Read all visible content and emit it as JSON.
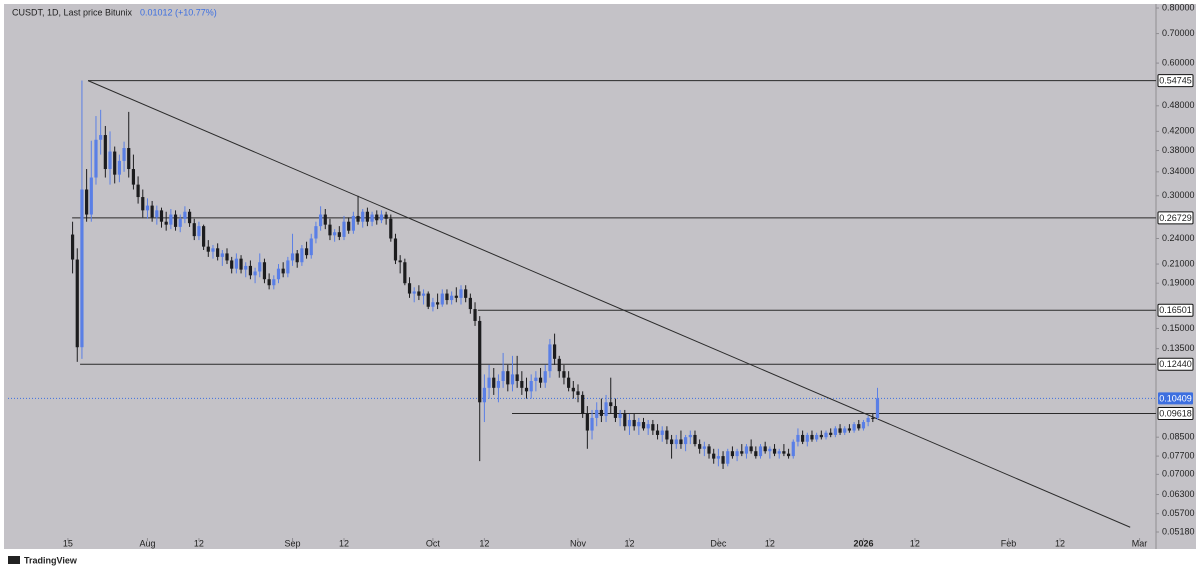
{
  "chart_data": {
    "type": "candlestick",
    "title": "CUSDT, 1D, Last price Bitunix",
    "change": "0.01012 (+10.77%)",
    "footer": "TradingView",
    "log_scale": true,
    "up_color": "#5a7fe6",
    "down_color": "#1c1c1e",
    "ylim": [
      0.0502,
      0.8085
    ],
    "yticks": [
      {
        "value": 0.8,
        "label": "0.80000"
      },
      {
        "value": 0.7,
        "label": "0.70000"
      },
      {
        "value": 0.6,
        "label": "0.60000"
      },
      {
        "value": 0.48,
        "label": "0.48000"
      },
      {
        "value": 0.42,
        "label": "0.42000"
      },
      {
        "value": 0.38,
        "label": "0.38000"
      },
      {
        "value": 0.34,
        "label": "0.34000"
      },
      {
        "value": 0.3,
        "label": "0.30000"
      },
      {
        "value": 0.24,
        "label": "0.24000"
      },
      {
        "value": 0.21,
        "label": "0.21000"
      },
      {
        "value": 0.19,
        "label": "0.19000"
      },
      {
        "value": 0.15,
        "label": "0.15000"
      },
      {
        "value": 0.135,
        "label": "0.13500"
      },
      {
        "value": 0.085,
        "label": "0.08500"
      },
      {
        "value": 0.077,
        "label": "0.07700"
      },
      {
        "value": 0.07,
        "label": "0.07000"
      },
      {
        "value": 0.063,
        "label": "0.06300"
      },
      {
        "value": 0.057,
        "label": "0.05700"
      },
      {
        "value": 0.0518,
        "label": "0.05180"
      }
    ],
    "xlim": [
      -12.8,
      232.3
    ],
    "xticks": [
      {
        "value": 0,
        "label": "15"
      },
      {
        "value": 17,
        "label": "Aug"
      },
      {
        "value": 28,
        "label": "12"
      },
      {
        "value": 48,
        "label": "Sep"
      },
      {
        "value": 59,
        "label": "12"
      },
      {
        "value": 78,
        "label": "Oct"
      },
      {
        "value": 89,
        "label": "12"
      },
      {
        "value": 109,
        "label": "Nov"
      },
      {
        "value": 120,
        "label": "12"
      },
      {
        "value": 139,
        "label": "Dec"
      },
      {
        "value": 150,
        "label": "12"
      },
      {
        "value": 170,
        "label": "2026"
      },
      {
        "value": 181,
        "label": "12"
      },
      {
        "value": 201,
        "label": "Feb"
      },
      {
        "value": 212,
        "label": "12"
      },
      {
        "value": 229,
        "label": "Mar"
      }
    ],
    "x": [
      1,
      2,
      3,
      4,
      5,
      6,
      7,
      8,
      9,
      10,
      11,
      12,
      13,
      14,
      15,
      16,
      17,
      18,
      19,
      20,
      21,
      22,
      23,
      24,
      25,
      26,
      27,
      28,
      29,
      30,
      31,
      32,
      33,
      34,
      35,
      36,
      37,
      38,
      39,
      40,
      41,
      42,
      43,
      44,
      45,
      46,
      47,
      48,
      49,
      50,
      51,
      52,
      53,
      54,
      55,
      56,
      57,
      58,
      59,
      60,
      61,
      62,
      63,
      64,
      65,
      66,
      67,
      68,
      69,
      70,
      71,
      72,
      73,
      74,
      75,
      76,
      77,
      78,
      79,
      80,
      81,
      82,
      83,
      84,
      85,
      86,
      87,
      88,
      89,
      90,
      91,
      92,
      93,
      94,
      95,
      96,
      97,
      98,
      99,
      100,
      101,
      102,
      103,
      104,
      105,
      106,
      107,
      108,
      109,
      110,
      111,
      112,
      113,
      114,
      115,
      116,
      117,
      118,
      119,
      120,
      121,
      122,
      123,
      124,
      125,
      126,
      127,
      128,
      129,
      130,
      131,
      132,
      133,
      134,
      135,
      136,
      137,
      138,
      139,
      140,
      141,
      142,
      143,
      144,
      145,
      146,
      147,
      148,
      149,
      150,
      151,
      152,
      153,
      154,
      155,
      156,
      157,
      158,
      159,
      160,
      161,
      162,
      163,
      164,
      165,
      166,
      167,
      168,
      169,
      170,
      171,
      172,
      173
    ],
    "ohlc": [
      [
        0.245,
        0.262,
        0.2,
        0.215
      ],
      [
        0.215,
        0.228,
        0.126,
        0.136
      ],
      [
        0.136,
        0.548,
        0.128,
        0.31
      ],
      [
        0.31,
        0.345,
        0.262,
        0.272
      ],
      [
        0.272,
        0.4,
        0.262,
        0.33
      ],
      [
        0.33,
        0.455,
        0.318,
        0.402
      ],
      [
        0.402,
        0.47,
        0.372,
        0.412
      ],
      [
        0.412,
        0.432,
        0.33,
        0.345
      ],
      [
        0.345,
        0.42,
        0.318,
        0.378
      ],
      [
        0.378,
        0.388,
        0.32,
        0.335
      ],
      [
        0.335,
        0.372,
        0.322,
        0.36
      ],
      [
        0.36,
        0.398,
        0.34,
        0.385
      ],
      [
        0.385,
        0.465,
        0.33,
        0.345
      ],
      [
        0.345,
        0.372,
        0.31,
        0.318
      ],
      [
        0.318,
        0.332,
        0.288,
        0.298
      ],
      [
        0.298,
        0.31,
        0.268,
        0.278
      ],
      [
        0.278,
        0.296,
        0.266,
        0.285
      ],
      [
        0.285,
        0.292,
        0.262,
        0.268
      ],
      [
        0.268,
        0.285,
        0.258,
        0.278
      ],
      [
        0.278,
        0.282,
        0.254,
        0.262
      ],
      [
        0.262,
        0.276,
        0.25,
        0.258
      ],
      [
        0.258,
        0.28,
        0.252,
        0.272
      ],
      [
        0.272,
        0.278,
        0.25,
        0.255
      ],
      [
        0.255,
        0.272,
        0.248,
        0.266
      ],
      [
        0.266,
        0.284,
        0.26,
        0.276
      ],
      [
        0.276,
        0.28,
        0.255,
        0.26
      ],
      [
        0.26,
        0.266,
        0.238,
        0.243
      ],
      [
        0.243,
        0.262,
        0.238,
        0.256
      ],
      [
        0.256,
        0.258,
        0.226,
        0.23
      ],
      [
        0.23,
        0.238,
        0.218,
        0.224
      ],
      [
        0.224,
        0.232,
        0.216,
        0.228
      ],
      [
        0.228,
        0.234,
        0.214,
        0.218
      ],
      [
        0.218,
        0.226,
        0.208,
        0.222
      ],
      [
        0.222,
        0.228,
        0.21,
        0.214
      ],
      [
        0.214,
        0.218,
        0.2,
        0.205
      ],
      [
        0.205,
        0.222,
        0.2,
        0.216
      ],
      [
        0.216,
        0.22,
        0.2,
        0.204
      ],
      [
        0.204,
        0.212,
        0.196,
        0.208
      ],
      [
        0.208,
        0.214,
        0.194,
        0.198
      ],
      [
        0.198,
        0.206,
        0.19,
        0.202
      ],
      [
        0.202,
        0.222,
        0.196,
        0.212
      ],
      [
        0.212,
        0.216,
        0.19,
        0.194
      ],
      [
        0.194,
        0.2,
        0.184,
        0.188
      ],
      [
        0.188,
        0.198,
        0.184,
        0.194
      ],
      [
        0.194,
        0.21,
        0.19,
        0.205
      ],
      [
        0.205,
        0.212,
        0.196,
        0.2
      ],
      [
        0.2,
        0.218,
        0.196,
        0.214
      ],
      [
        0.214,
        0.246,
        0.208,
        0.222
      ],
      [
        0.222,
        0.226,
        0.206,
        0.212
      ],
      [
        0.212,
        0.232,
        0.208,
        0.228
      ],
      [
        0.228,
        0.236,
        0.216,
        0.22
      ],
      [
        0.22,
        0.246,
        0.216,
        0.24
      ],
      [
        0.24,
        0.262,
        0.234,
        0.256
      ],
      [
        0.256,
        0.284,
        0.25,
        0.272
      ],
      [
        0.272,
        0.28,
        0.252,
        0.258
      ],
      [
        0.258,
        0.266,
        0.238,
        0.244
      ],
      [
        0.244,
        0.252,
        0.236,
        0.248
      ],
      [
        0.248,
        0.256,
        0.238,
        0.242
      ],
      [
        0.242,
        0.27,
        0.238,
        0.262
      ],
      [
        0.262,
        0.268,
        0.246,
        0.25
      ],
      [
        0.25,
        0.276,
        0.246,
        0.27
      ],
      [
        0.27,
        0.3,
        0.258,
        0.262
      ],
      [
        0.262,
        0.28,
        0.254,
        0.276
      ],
      [
        0.276,
        0.282,
        0.256,
        0.262
      ],
      [
        0.262,
        0.276,
        0.256,
        0.272
      ],
      [
        0.272,
        0.278,
        0.258,
        0.264
      ],
      [
        0.264,
        0.278,
        0.26,
        0.272
      ],
      [
        0.272,
        0.276,
        0.258,
        0.266
      ],
      [
        0.266,
        0.272,
        0.236,
        0.24
      ],
      [
        0.24,
        0.246,
        0.21,
        0.214
      ],
      [
        0.214,
        0.22,
        0.2,
        0.212
      ],
      [
        0.212,
        0.216,
        0.188,
        0.19
      ],
      [
        0.19,
        0.196,
        0.176,
        0.18
      ],
      [
        0.18,
        0.186,
        0.172,
        0.182
      ],
      [
        0.182,
        0.188,
        0.174,
        0.178
      ],
      [
        0.178,
        0.184,
        0.17,
        0.18
      ],
      [
        0.18,
        0.182,
        0.166,
        0.168
      ],
      [
        0.168,
        0.176,
        0.164,
        0.172
      ],
      [
        0.172,
        0.18,
        0.166,
        0.17
      ],
      [
        0.17,
        0.184,
        0.168,
        0.18
      ],
      [
        0.18,
        0.184,
        0.17,
        0.174
      ],
      [
        0.174,
        0.182,
        0.17,
        0.178
      ],
      [
        0.178,
        0.186,
        0.172,
        0.176
      ],
      [
        0.176,
        0.188,
        0.17,
        0.184
      ],
      [
        0.184,
        0.188,
        0.172,
        0.176
      ],
      [
        0.176,
        0.18,
        0.162,
        0.166
      ],
      [
        0.166,
        0.172,
        0.152,
        0.156
      ],
      [
        0.156,
        0.16,
        0.075,
        0.102
      ],
      [
        0.102,
        0.118,
        0.092,
        0.11
      ],
      [
        0.11,
        0.124,
        0.104,
        0.116
      ],
      [
        0.116,
        0.122,
        0.106,
        0.11
      ],
      [
        0.11,
        0.118,
        0.102,
        0.114
      ],
      [
        0.114,
        0.132,
        0.11,
        0.12
      ],
      [
        0.12,
        0.124,
        0.108,
        0.112
      ],
      [
        0.112,
        0.13,
        0.108,
        0.118
      ],
      [
        0.118,
        0.13,
        0.11,
        0.114
      ],
      [
        0.114,
        0.12,
        0.106,
        0.11
      ],
      [
        0.11,
        0.116,
        0.104,
        0.108
      ],
      [
        0.108,
        0.118,
        0.104,
        0.114
      ],
      [
        0.114,
        0.12,
        0.108,
        0.116
      ],
      [
        0.116,
        0.122,
        0.11,
        0.113
      ],
      [
        0.113,
        0.124,
        0.11,
        0.12
      ],
      [
        0.12,
        0.142,
        0.116,
        0.138
      ],
      [
        0.138,
        0.146,
        0.124,
        0.128
      ],
      [
        0.128,
        0.13,
        0.116,
        0.12
      ],
      [
        0.12,
        0.124,
        0.112,
        0.116
      ],
      [
        0.116,
        0.12,
        0.108,
        0.11
      ],
      [
        0.11,
        0.114,
        0.104,
        0.108
      ],
      [
        0.108,
        0.112,
        0.102,
        0.106
      ],
      [
        0.106,
        0.108,
        0.094,
        0.096
      ],
      [
        0.096,
        0.1,
        0.08,
        0.088
      ],
      [
        0.088,
        0.098,
        0.084,
        0.094
      ],
      [
        0.094,
        0.102,
        0.09,
        0.098
      ],
      [
        0.098,
        0.104,
        0.092,
        0.095
      ],
      [
        0.095,
        0.106,
        0.092,
        0.102
      ],
      [
        0.102,
        0.116,
        0.096,
        0.1
      ],
      [
        0.1,
        0.104,
        0.092,
        0.094
      ],
      [
        0.094,
        0.098,
        0.09,
        0.096
      ],
      [
        0.096,
        0.098,
        0.088,
        0.09
      ],
      [
        0.09,
        0.096,
        0.086,
        0.093
      ],
      [
        0.093,
        0.096,
        0.088,
        0.09
      ],
      [
        0.09,
        0.094,
        0.086,
        0.092
      ],
      [
        0.092,
        0.094,
        0.088,
        0.089
      ],
      [
        0.089,
        0.093,
        0.086,
        0.091
      ],
      [
        0.091,
        0.093,
        0.086,
        0.088
      ],
      [
        0.088,
        0.091,
        0.084,
        0.086
      ],
      [
        0.086,
        0.09,
        0.083,
        0.088
      ],
      [
        0.088,
        0.09,
        0.082,
        0.084
      ],
      [
        0.084,
        0.086,
        0.076,
        0.082
      ],
      [
        0.082,
        0.086,
        0.08,
        0.084
      ],
      [
        0.084,
        0.088,
        0.08,
        0.082
      ],
      [
        0.082,
        0.086,
        0.079,
        0.085
      ],
      [
        0.085,
        0.088,
        0.082,
        0.086
      ],
      [
        0.086,
        0.088,
        0.081,
        0.082
      ],
      [
        0.082,
        0.084,
        0.078,
        0.08
      ],
      [
        0.08,
        0.083,
        0.077,
        0.081
      ],
      [
        0.081,
        0.082,
        0.076,
        0.078
      ],
      [
        0.078,
        0.08,
        0.074,
        0.076
      ],
      [
        0.076,
        0.08,
        0.073,
        0.077
      ],
      [
        0.077,
        0.079,
        0.072,
        0.074
      ],
      [
        0.074,
        0.08,
        0.073,
        0.079
      ],
      [
        0.079,
        0.081,
        0.076,
        0.077
      ],
      [
        0.077,
        0.08,
        0.075,
        0.079
      ],
      [
        0.079,
        0.082,
        0.077,
        0.078
      ],
      [
        0.078,
        0.082,
        0.076,
        0.081
      ],
      [
        0.081,
        0.084,
        0.078,
        0.079
      ],
      [
        0.079,
        0.081,
        0.076,
        0.077
      ],
      [
        0.077,
        0.082,
        0.076,
        0.081
      ],
      [
        0.081,
        0.083,
        0.078,
        0.079
      ],
      [
        0.079,
        0.081,
        0.076,
        0.08
      ],
      [
        0.08,
        0.082,
        0.077,
        0.078
      ],
      [
        0.078,
        0.08,
        0.076,
        0.079
      ],
      [
        0.079,
        0.082,
        0.077,
        0.078
      ],
      [
        0.078,
        0.08,
        0.076,
        0.077
      ],
      [
        0.077,
        0.084,
        0.076,
        0.083
      ],
      [
        0.083,
        0.089,
        0.081,
        0.086
      ],
      [
        0.086,
        0.088,
        0.082,
        0.083
      ],
      [
        0.083,
        0.087,
        0.081,
        0.086
      ],
      [
        0.086,
        0.088,
        0.083,
        0.084
      ],
      [
        0.084,
        0.087,
        0.083,
        0.086
      ],
      [
        0.086,
        0.088,
        0.084,
        0.085
      ],
      [
        0.085,
        0.088,
        0.084,
        0.087
      ],
      [
        0.087,
        0.089,
        0.085,
        0.086
      ],
      [
        0.086,
        0.09,
        0.085,
        0.089
      ],
      [
        0.089,
        0.091,
        0.086,
        0.087
      ],
      [
        0.087,
        0.09,
        0.086,
        0.089
      ],
      [
        0.089,
        0.091,
        0.087,
        0.088
      ],
      [
        0.088,
        0.092,
        0.087,
        0.091
      ],
      [
        0.091,
        0.093,
        0.088,
        0.089
      ],
      [
        0.089,
        0.093,
        0.088,
        0.092
      ],
      [
        0.092,
        0.095,
        0.09,
        0.094
      ],
      [
        0.094,
        0.096,
        0.092,
        0.09397
      ],
      [
        0.09397,
        0.11,
        0.093,
        0.10409
      ]
    ],
    "levels": [
      {
        "value": 0.54745,
        "label": "0.54745",
        "start": 4.3
      },
      {
        "value": 0.26729,
        "label": "0.26729",
        "start": 0.9
      },
      {
        "value": 0.16501,
        "label": "0.16501",
        "start": 87.6
      },
      {
        "value": 0.1244,
        "label": "0.12440",
        "start": 2.6
      },
      {
        "value": 0.09618,
        "label": "0.09618",
        "start": 94.9
      }
    ],
    "last_price": {
      "value": 0.10409,
      "label": "0.10409",
      "color": "#3d6fe0"
    },
    "trendline": {
      "x": [
        4.3,
        227
      ],
      "y": [
        0.54745,
        0.0531
      ]
    }
  }
}
